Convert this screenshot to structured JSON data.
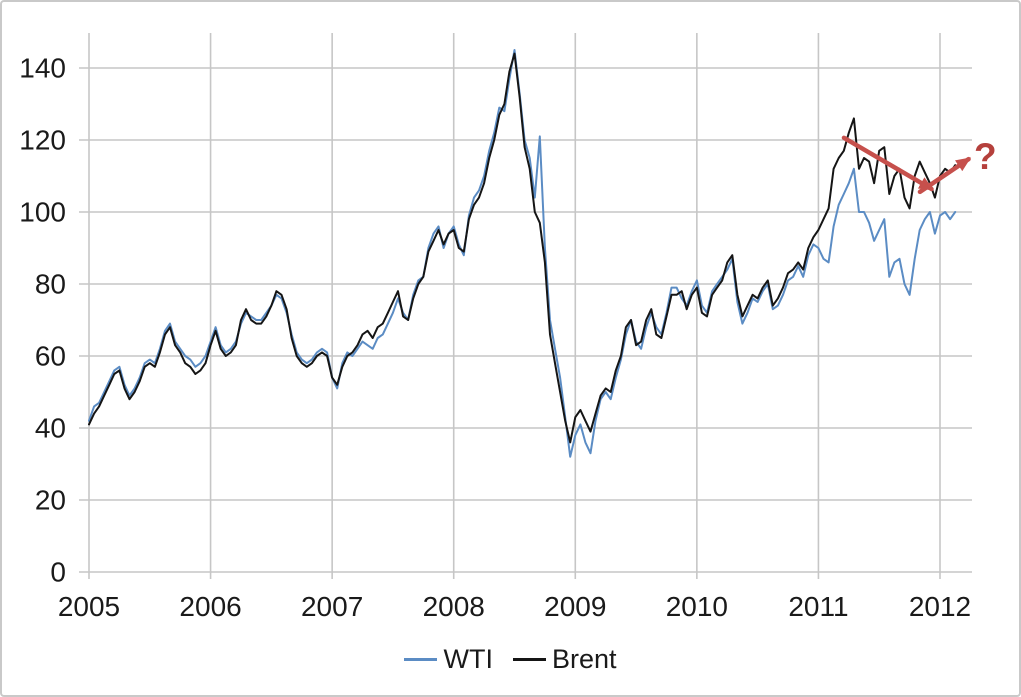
{
  "chart_data": {
    "type": "line",
    "title": "",
    "xlabel": "",
    "ylabel": "",
    "grid": true,
    "legend_position": "bottom",
    "x_axis": {
      "min": 2005,
      "max": 2012.26,
      "ticks": [
        2005,
        2006,
        2007,
        2008,
        2009,
        2010,
        2011,
        2012
      ]
    },
    "y_axis": {
      "min": 0,
      "max": 150,
      "ticks": [
        0,
        20,
        40,
        60,
        80,
        100,
        120,
        140
      ]
    },
    "x_start": 2005.0,
    "x_step": 0.0416667,
    "series": [
      {
        "name": "WTI",
        "color": "#5B8CC4",
        "values": [
          42,
          46,
          47,
          50,
          53,
          56,
          57,
          52,
          49,
          51,
          54,
          58,
          59,
          58,
          62,
          67,
          69,
          64,
          62,
          60,
          59,
          57,
          58,
          60,
          64,
          68,
          63,
          61,
          62,
          64,
          69,
          72,
          71,
          70,
          70,
          72,
          74,
          77,
          76,
          72,
          66,
          61,
          59,
          58,
          59,
          61,
          62,
          61,
          54,
          51,
          58,
          61,
          60,
          62,
          64,
          63,
          62,
          65,
          66,
          69,
          72,
          76,
          72,
          70,
          77,
          81,
          82,
          90,
          94,
          96,
          90,
          94,
          96,
          91,
          88,
          99,
          104,
          106,
          110,
          117,
          122,
          129,
          128,
          137,
          145,
          133,
          120,
          115,
          104,
          121,
          90,
          70,
          62,
          54,
          43,
          32,
          38,
          41,
          36,
          33,
          42,
          48,
          50,
          48,
          54,
          59,
          66,
          70,
          64,
          62,
          68,
          72,
          68,
          66,
          72,
          79,
          79,
          76,
          74,
          78,
          81,
          74,
          72,
          78,
          80,
          82,
          84,
          87,
          75,
          69,
          72,
          76,
          75,
          78,
          80,
          73,
          74,
          77,
          81,
          82,
          85,
          82,
          88,
          91,
          90,
          87,
          86,
          96,
          102,
          105,
          108,
          112,
          100,
          100,
          97,
          92,
          95,
          98,
          82,
          86,
          87,
          80,
          77,
          87,
          95,
          98,
          100,
          94,
          99,
          100,
          98,
          100
        ]
      },
      {
        "name": "Brent",
        "color": "#151515",
        "values": [
          41,
          44,
          46,
          49,
          52,
          55,
          56,
          51,
          48,
          50,
          53,
          57,
          58,
          57,
          61,
          66,
          68,
          63,
          61,
          58,
          57,
          55,
          56,
          58,
          63,
          67,
          62,
          60,
          61,
          63,
          70,
          73,
          70,
          69,
          69,
          71,
          74,
          78,
          77,
          73,
          65,
          60,
          58,
          57,
          58,
          60,
          61,
          60,
          54,
          52,
          57,
          60,
          61,
          63,
          66,
          67,
          65,
          68,
          69,
          72,
          75,
          78,
          71,
          70,
          76,
          80,
          82,
          89,
          92,
          95,
          91,
          94,
          95,
          90,
          89,
          98,
          102,
          104,
          108,
          115,
          120,
          127,
          130,
          139,
          144,
          132,
          118,
          112,
          100,
          97,
          86,
          66,
          58,
          50,
          42,
          36,
          43,
          45,
          42,
          39,
          44,
          49,
          51,
          50,
          56,
          60,
          68,
          70,
          63,
          64,
          70,
          73,
          66,
          65,
          71,
          77,
          77,
          78,
          73,
          77,
          79,
          72,
          71,
          77,
          79,
          81,
          86,
          88,
          77,
          71,
          74,
          77,
          76,
          79,
          81,
          74,
          76,
          79,
          83,
          84,
          86,
          84,
          90,
          93,
          95,
          98,
          101,
          112,
          115,
          117,
          122,
          126,
          112,
          115,
          114,
          108,
          117,
          118,
          105,
          110,
          112,
          104,
          101,
          110,
          114,
          111,
          108,
          104,
          110,
          112,
          111,
          113
        ]
      }
    ],
    "annotations": {
      "arrow_color": "#C6504C",
      "arrows": [
        {
          "from": [
            2011.21,
            120.6
          ],
          "to": [
            2011.93,
            106.4
          ]
        },
        {
          "from": [
            2011.835,
            105.6
          ],
          "to": [
            2012.235,
            114.7
          ]
        }
      ],
      "question_mark": {
        "label": "?",
        "x": 2012.28,
        "y": 112,
        "color": "#B5403C"
      }
    }
  },
  "legend": {
    "items": [
      {
        "label": "WTI",
        "color": "#5B8CC4"
      },
      {
        "label": "Brent",
        "color": "#151515"
      }
    ]
  },
  "colors": {
    "gridline": "#C6C6C6",
    "axis_text": "#1A1A1A",
    "background": "#FFFFFF",
    "frame_border": "#C9C9C9"
  }
}
